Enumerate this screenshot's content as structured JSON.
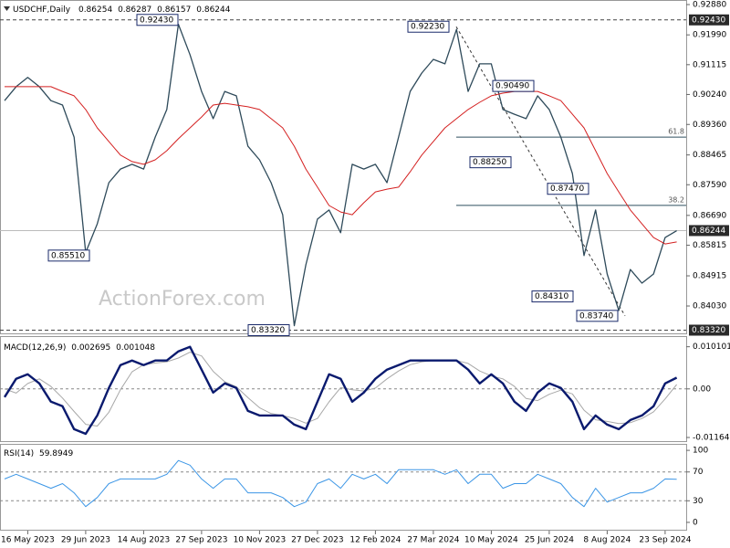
{
  "chart_data": [
    {
      "type": "line",
      "title": "USDCHF,Daily",
      "ohlc": [
        0.86254,
        0.86287,
        0.86157,
        0.86244
      ],
      "watermark": "ActionForex.com",
      "series": [
        {
          "color": "#2e4a5a",
          "values": [
            0.9006,
            0.9047,
            0.9074,
            0.9047,
            0.9006,
            0.8993,
            0.8899,
            0.856,
            0.8644,
            0.8765,
            0.8805,
            0.8819,
            0.8805,
            0.8899,
            0.898,
            0.923,
            0.9141,
            0.9033,
            0.8953,
            0.9033,
            0.902,
            0.8872,
            0.8832,
            0.8765,
            0.8671,
            0.8345,
            0.8524,
            0.8658,
            0.8685,
            0.8618,
            0.8819,
            0.8805,
            0.8819,
            0.8765,
            0.8899,
            0.9033,
            0.9087,
            0.9127,
            0.9114,
            0.9215,
            0.9033,
            0.9114,
            0.9114,
            0.898,
            0.8966,
            0.8953,
            0.902,
            0.898,
            0.8899,
            0.8792,
            0.8551,
            0.8685,
            0.8497,
            0.839,
            0.851,
            0.847,
            0.8497,
            0.8604,
            0.8624
          ]
        },
        {
          "color": "#d42020",
          "values": [
            0.9047,
            0.9047,
            0.9047,
            0.9047,
            0.9047,
            0.9033,
            0.902,
            0.898,
            0.8926,
            0.8886,
            0.8846,
            0.8827,
            0.8819,
            0.8832,
            0.8859,
            0.8894,
            0.8926,
            0.8958,
            0.8993,
            0.8998,
            0.8993,
            0.8988,
            0.898,
            0.8953,
            0.8926,
            0.8872,
            0.8805,
            0.8752,
            0.8698,
            0.8679,
            0.8671,
            0.8706,
            0.8738,
            0.8746,
            0.8752,
            0.8797,
            0.8846,
            0.8886,
            0.8926,
            0.8953,
            0.898,
            0.9001,
            0.902,
            0.9028,
            0.9033,
            0.9033,
            0.9033,
            0.902,
            0.9006,
            0.8966,
            0.8926,
            0.8859,
            0.8792,
            0.8738,
            0.8685,
            0.8644,
            0.8604,
            0.8585,
            0.8591
          ]
        }
      ],
      "ylim": [
        0.83226,
        0.93014
      ],
      "yticks": [
        {
          "value": 0.9288,
          "label": "0.92880"
        },
        {
          "value": 0.9199,
          "label": "0.91990"
        },
        0.91115,
        {
          "value": 0.9024,
          "label": "0.90240"
        },
        {
          "value": 0.8936,
          "label": "0.89360"
        },
        0.88465,
        {
          "value": 0.8759,
          "label": "0.87590"
        },
        {
          "value": 0.8669,
          "label": "0.86690"
        },
        0.85815,
        0.84915,
        {
          "value": 0.8403,
          "label": "0.84030"
        }
      ],
      "levels": [
        {
          "value": 0.9243,
          "label": "0.92430"
        },
        {
          "value": 0.86244,
          "label": "0.86244"
        },
        {
          "value": 0.8332,
          "label": "0.83320"
        }
      ],
      "annotations": [
        {
          "value": 0.9243,
          "label": "0.92430"
        },
        {
          "value": 0.9223,
          "label": "0.92230"
        },
        {
          "value": 0.9049,
          "label": "0.90490"
        },
        {
          "value": 0.8825,
          "label": "0.88250"
        },
        {
          "value": 0.8747,
          "label": "0.87470"
        },
        {
          "value": 0.8551,
          "label": "0.85510"
        },
        {
          "value": 0.8431,
          "label": "0.84310"
        },
        {
          "value": 0.8374,
          "label": "0.83740"
        },
        {
          "value": 0.8332,
          "label": "0.83320"
        }
      ],
      "fib_levels": [
        {
          "value": 0.88987,
          "label": "61.8"
        },
        {
          "value": 0.86983,
          "label": "38.2"
        }
      ]
    },
    {
      "type": "line",
      "title": "MACD(12,26,9)",
      "series": [
        {
          "color": "#0a1a6e",
          "values": [
            -0.00198,
            0.00242,
            0.00351,
            0.00132,
            -0.00307,
            -0.00417,
            -0.00966,
            -0.01076,
            -0.00637,
            0.00022,
            0.00571,
            0.00681,
            0.00571,
            0.00681,
            0.00681,
            0.009,
            0.0101,
            0.00461,
            -0.00088,
            0.00132,
            0.00022,
            -0.00527,
            -0.00637,
            -0.00637,
            -0.00637,
            -0.00856,
            -0.00966,
            -0.00307,
            0.00351,
            0.00242,
            -0.00307,
            -0.00088,
            0.00242,
            0.00461,
            0.00571,
            0.00681,
            0.00681,
            0.00681,
            0.00681,
            0.00681,
            0.00461,
            0.00132,
            0.00351,
            0.00132,
            -0.00307,
            -0.00527,
            -0.00088,
            0.00132,
            0.00022,
            -0.00307,
            -0.00966,
            -0.00637,
            -0.00856,
            -0.00966,
            -0.00747,
            -0.00637,
            -0.00417,
            0.00132,
            0.002695
          ]
        },
        {
          "color": "#a8a8a8",
          "values": [
            0.0,
            -0.001,
            0.0013,
            0.0024,
            0.0006,
            -0.0022,
            -0.0054,
            -0.0085,
            -0.0089,
            -0.0056,
            -0.0002,
            0.0041,
            0.0058,
            0.0062,
            0.0065,
            0.0074,
            0.0088,
            0.0079,
            0.0042,
            0.0017,
            0.0005,
            -0.0021,
            -0.0045,
            -0.0059,
            -0.0064,
            -0.0071,
            -0.0082,
            -0.0071,
            -0.0031,
            0.0003,
            -0.0002,
            -0.0005,
            0.0002,
            0.0024,
            0.0043,
            0.0058,
            0.0065,
            0.0068,
            0.0068,
            0.0068,
            0.0061,
            0.0043,
            0.0031,
            0.0024,
            0.0006,
            -0.0023,
            -0.0028,
            -0.0013,
            -0.0003,
            -0.0012,
            -0.0051,
            -0.0074,
            -0.0078,
            -0.0083,
            -0.0081,
            -0.0071,
            -0.0055,
            -0.0024,
            0.001048
          ]
        }
      ],
      "ylim": [
        -0.01252,
        0.01265
      ],
      "yticks": [
        0.010101,
        {
          "value": 0,
          "label": "0.00"
        },
        -0.011645
      ]
    },
    {
      "type": "line",
      "title": "RSI(14)",
      "categories": [
        null,
        null,
        "16 May 2023",
        null,
        null,
        null,
        null,
        "29 Jun 2023",
        null,
        null,
        null,
        null,
        "14 Aug 2023",
        null,
        null,
        null,
        null,
        "27 Sep 2023",
        null,
        null,
        null,
        null,
        "10 Nov 2023",
        null,
        null,
        null,
        null,
        "27 Dec 2023",
        null,
        null,
        null,
        null,
        "12 Feb 2024",
        null,
        null,
        null,
        null,
        "27 Mar 2024",
        null,
        null,
        null,
        null,
        "10 May 2024",
        null,
        null,
        null,
        null,
        "25 Jun 2024",
        null,
        null,
        null,
        null,
        "8 Aug 2024",
        null,
        null,
        null,
        null,
        "23 Sep 2024",
        null
      ],
      "series": [
        {
          "color": "#3c96e6",
          "values": [
            60.3,
            66.7,
            60.3,
            53.8,
            47.4,
            53.8,
            41.0,
            21.8,
            34.6,
            53.8,
            60.3,
            60.3,
            60.3,
            60.3,
            66.7,
            85.9,
            79.5,
            60.3,
            47.4,
            60.3,
            60.3,
            41.0,
            41.0,
            41.0,
            34.6,
            21.8,
            28.2,
            53.8,
            60.3,
            47.4,
            66.7,
            60.3,
            66.7,
            53.8,
            73.1,
            73.1,
            73.1,
            73.1,
            66.7,
            73.1,
            53.8,
            66.7,
            66.7,
            47.4,
            53.8,
            53.8,
            66.7,
            60.3,
            53.8,
            34.6,
            21.8,
            47.4,
            28.2,
            34.6,
            41.0,
            41.0,
            47.4,
            60.3,
            59.8949
          ]
        }
      ],
      "ylim": [
        -11.5,
        109
      ],
      "yticks": [
        100,
        70,
        30,
        0
      ]
    }
  ]
}
